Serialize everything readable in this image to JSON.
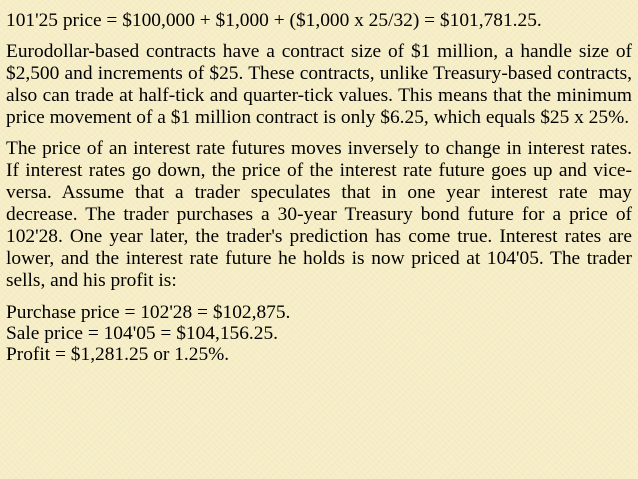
{
  "formula_line": "101'25 price = $100,000 + $1,000 + ($1,000 x 25/32) = $101,781.25.",
  "paragraph_eurodollar": "Eurodollar-based contracts have a contract size of $1 million, a handle size of $2,500 and increments of $25. These contracts, unlike Treasury-based contracts, also can trade at half-tick and quarter-tick values. This means that the minimum price movement of a $1 million contract is only $6.25, which equals $25 x 25%.",
  "paragraph_inverse": "The price of an interest rate futures moves inversely to change in interest rates. If interest rates go down, the price of the interest rate future goes up and vice-versa. Assume that a trader speculates that in one year interest rate may decrease. The trader purchases a 30-year Treasury bond future for a price of 102'28. One year later, the trader's prediction has come true. Interest rates are lower, and the interest rate future he holds is now priced at 104'05. The trader sells, and his profit is:",
  "calculation": {
    "purchase": "Purchase price = 102'28 = $102,875.",
    "sale": "Sale price = 104'05 = $104,156.25.",
    "profit": "Profit = $1,281.25 or 1.25%."
  }
}
